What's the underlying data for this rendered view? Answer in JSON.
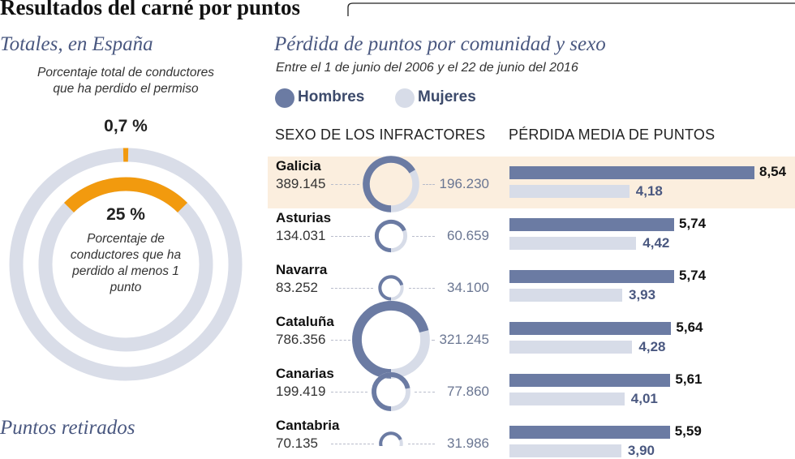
{
  "page": {
    "title": "Resultados del carné por puntos",
    "left_title": "Totales, en España",
    "right_title": "Pérdida de puntos por comunidad y sexo",
    "subtitle": "Entre el 1 de junio del 2006 y el 22 de junio del 2016",
    "bottom_title": "Puntos retirados"
  },
  "legend": {
    "men": "Hombres",
    "women": "Mujeres"
  },
  "columns": {
    "sex": "SEXO DE LOS INFRACTORES",
    "avg": "PÉRDIDA MEDIA DE PUNTOS"
  },
  "totals": {
    "outer_label": "Porcentaje total de conductores que ha perdido el permiso",
    "outer_pct": "0,7 %",
    "outer_value": 0.7,
    "inner_pct": "25 %",
    "inner_value": 25,
    "inner_label": "Porcentaje de conductores que ha perdido al menos 1 punto"
  },
  "colors": {
    "men": "#6b7ba3",
    "women": "#d7dce8",
    "orange": "#f29a0e",
    "ring": "#d9dde8",
    "highlight": "#fbeede"
  },
  "chart_data": {
    "type": "bar",
    "title": "Pérdida de puntos por comunidad y sexo",
    "categories": [
      "Galicia",
      "Asturias",
      "Navarra",
      "Cataluña",
      "Canarias",
      "Cantabria"
    ],
    "infractores": {
      "men": [
        389145,
        134031,
        83252,
        786356,
        199419,
        70135
      ],
      "women": [
        196230,
        60659,
        34100,
        321245,
        77860,
        31986
      ],
      "men_labels": [
        "389.145",
        "134.031",
        "83.252",
        "786.356",
        "199.419",
        "70.135"
      ],
      "women_labels": [
        "196.230",
        "60.659",
        "34.100",
        "321.245",
        "77.860",
        "31.986"
      ]
    },
    "series": [
      {
        "name": "Hombres",
        "values": [
          8.54,
          5.74,
          5.74,
          5.64,
          5.61,
          5.59
        ],
        "labels": [
          "8,54",
          "5,74",
          "5,74",
          "5,64",
          "5,61",
          "5,59"
        ]
      },
      {
        "name": "Mujeres",
        "values": [
          4.18,
          4.42,
          3.93,
          4.28,
          4.01,
          3.9
        ],
        "labels": [
          "4,18",
          "4,42",
          "3,93",
          "4,28",
          "4,01",
          "3,90"
        ]
      }
    ],
    "highlight": "Galicia"
  }
}
